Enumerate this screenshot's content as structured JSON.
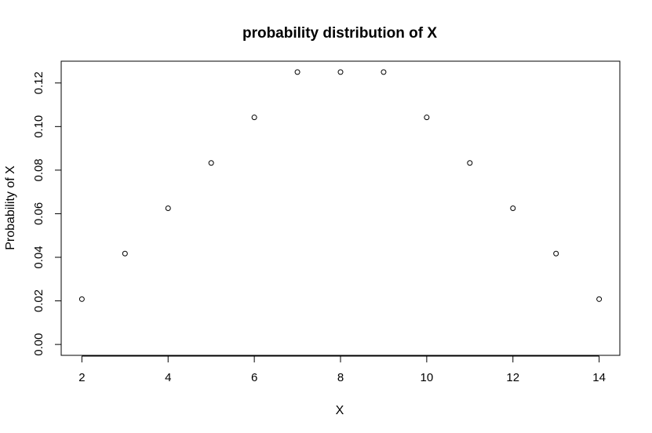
{
  "chart_data": {
    "type": "scatter",
    "title": "probability distribution of X",
    "xlabel": "X",
    "ylabel": "Probability of X",
    "x": [
      2,
      3,
      4,
      5,
      6,
      7,
      8,
      9,
      10,
      11,
      12,
      13,
      14
    ],
    "y": [
      0.0208,
      0.0417,
      0.0625,
      0.0833,
      0.1042,
      0.125,
      0.125,
      0.125,
      0.1042,
      0.0833,
      0.0625,
      0.0417,
      0.0208
    ],
    "xlim": [
      1.52,
      14.48
    ],
    "ylim": [
      -0.005,
      0.13
    ],
    "x_ticks": [
      2,
      4,
      6,
      8,
      10,
      12,
      14
    ],
    "y_ticks": [
      0.0,
      0.02,
      0.04,
      0.06,
      0.08,
      0.1,
      0.12
    ],
    "x_tick_labels": [
      "2",
      "4",
      "6",
      "8",
      "10",
      "12",
      "14"
    ],
    "y_tick_labels": [
      "0.00",
      "0.02",
      "0.04",
      "0.06",
      "0.08",
      "0.10",
      "0.12"
    ],
    "marker": "open-circle",
    "grid": false,
    "legend": "none",
    "colors": {
      "point_stroke": "#000000",
      "background": "#ffffff"
    }
  }
}
